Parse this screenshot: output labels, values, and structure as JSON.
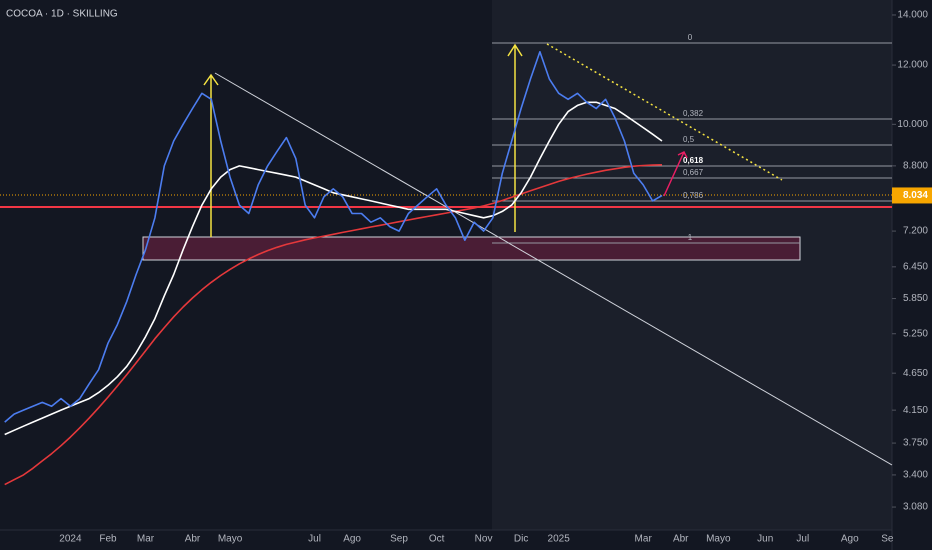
{
  "chart_data": {
    "type": "line",
    "title": "COCOA · 1D · SKILLING",
    "log_scale": true,
    "ylim": [
      2870,
      14660
    ],
    "yticks": [
      {
        "value": 14000,
        "label": "14.000"
      },
      {
        "value": 12000,
        "label": "12.000"
      },
      {
        "value": 10000,
        "label": "10.000"
      },
      {
        "value": 8800,
        "label": "8.800"
      },
      {
        "value": 7200,
        "label": "7.200"
      },
      {
        "value": 6450,
        "label": "6.450"
      },
      {
        "value": 5850,
        "label": "5.850"
      },
      {
        "value": 5250,
        "label": "5.250"
      },
      {
        "value": 4650,
        "label": "4.650"
      },
      {
        "value": 4150,
        "label": "4.150"
      },
      {
        "value": 3750,
        "label": "3.750"
      },
      {
        "value": 3400,
        "label": "3.400"
      },
      {
        "value": 3080,
        "label": "3.080"
      }
    ],
    "last_price": {
      "value": 8034,
      "label": "8.034"
    },
    "fib_labels": [
      "0",
      "0,382",
      "0,5",
      "0,618",
      "0,667",
      "0,786",
      "1"
    ],
    "categories": [
      null,
      null,
      null,
      null,
      null,
      null,
      null,
      "2024",
      null,
      null,
      null,
      "Feb",
      null,
      null,
      null,
      "Mar",
      null,
      null,
      null,
      null,
      "Abr",
      null,
      null,
      null,
      "Mayo",
      null,
      null,
      null,
      null,
      null,
      null,
      null,
      null,
      "Jul",
      null,
      null,
      null,
      "Ago",
      null,
      null,
      null,
      null,
      "Sep",
      null,
      null,
      null,
      "Oct",
      null,
      null,
      null,
      null,
      "Nov",
      null,
      null,
      null,
      "Dic",
      null,
      null,
      null,
      "2025",
      null,
      null,
      null,
      null,
      null,
      null,
      null,
      null,
      "Mar",
      null,
      null,
      null,
      "Abr",
      null,
      null,
      null,
      "Mayo",
      null,
      null,
      null,
      null,
      "Jun",
      null,
      null,
      null,
      "Jul",
      null,
      null,
      null,
      null,
      "Ago",
      null,
      null,
      null,
      "Se"
    ],
    "series": [
      {
        "color": "#4c7df0",
        "values": [
          4000,
          4100,
          4150,
          4200,
          4250,
          4200,
          4300,
          4200,
          4300,
          4500,
          4700,
          5100,
          5400,
          5800,
          6300,
          6800,
          7500,
          8800,
          9500,
          10000,
          10500,
          11000,
          10800,
          9500,
          8500,
          7800,
          7600,
          8300,
          8800,
          9200,
          9600,
          9000,
          7800,
          7500,
          8000,
          8200,
          8000,
          7600,
          7600,
          7400,
          7500,
          7300,
          7200,
          7600,
          7800,
          8000,
          8200,
          7800,
          7500,
          7000,
          7400,
          7200,
          7500,
          8600,
          9500,
          10500,
          11500,
          12500,
          11500,
          11000,
          10800,
          11000,
          10700,
          10500,
          10800,
          10200,
          9500,
          8600,
          8300,
          7900,
          8034,
          null,
          null,
          null,
          null,
          null,
          null,
          null,
          null,
          null,
          null,
          null,
          null,
          null,
          null,
          null,
          null,
          null,
          null,
          null,
          null,
          null,
          null,
          null,
          null
        ]
      },
      {
        "color": "#ffffff",
        "values": [
          3850,
          3900,
          3950,
          4000,
          4050,
          4100,
          4150,
          4200,
          4250,
          4300,
          4380,
          4480,
          4600,
          4750,
          4950,
          5200,
          5500,
          5900,
          6300,
          6800,
          7300,
          7800,
          8200,
          8500,
          8700,
          8800,
          8750,
          8700,
          8650,
          8600,
          8550,
          8500,
          8400,
          8300,
          8200,
          8100,
          8050,
          8000,
          7950,
          7900,
          7850,
          7800,
          7750,
          7700,
          7700,
          7700,
          7700,
          7700,
          7650,
          7600,
          7550,
          7500,
          7550,
          7650,
          7800,
          8100,
          8500,
          9000,
          9500,
          10000,
          10400,
          10600,
          10700,
          10700,
          10600,
          10500,
          10300,
          10100,
          9900,
          9700,
          9500,
          null,
          null,
          null,
          null,
          null,
          null,
          null,
          null,
          null,
          null,
          null,
          null,
          null,
          null,
          null,
          null,
          null,
          null,
          null,
          null,
          null,
          null,
          null,
          null
        ]
      },
      {
        "color": "#e5383b",
        "values": [
          3300,
          3350,
          3400,
          3470,
          3550,
          3630,
          3720,
          3820,
          3930,
          4050,
          4180,
          4320,
          4470,
          4630,
          4800,
          4980,
          5170,
          5350,
          5530,
          5700,
          5860,
          6010,
          6150,
          6280,
          6400,
          6510,
          6610,
          6700,
          6780,
          6850,
          6910,
          6960,
          7010,
          7050,
          7090,
          7130,
          7170,
          7210,
          7250,
          7290,
          7330,
          7370,
          7410,
          7450,
          7490,
          7530,
          7570,
          7610,
          7650,
          7690,
          7730,
          7780,
          7840,
          7910,
          7990,
          8070,
          8150,
          8230,
          8310,
          8390,
          8460,
          8520,
          8580,
          8630,
          8680,
          8720,
          8760,
          8790,
          8810,
          8820,
          8830,
          null,
          null,
          null,
          null,
          null,
          null,
          null,
          null,
          null,
          null,
          null,
          null,
          null,
          null,
          null,
          null,
          null,
          null,
          null,
          null,
          null,
          null,
          null,
          null
        ]
      }
    ]
  }
}
